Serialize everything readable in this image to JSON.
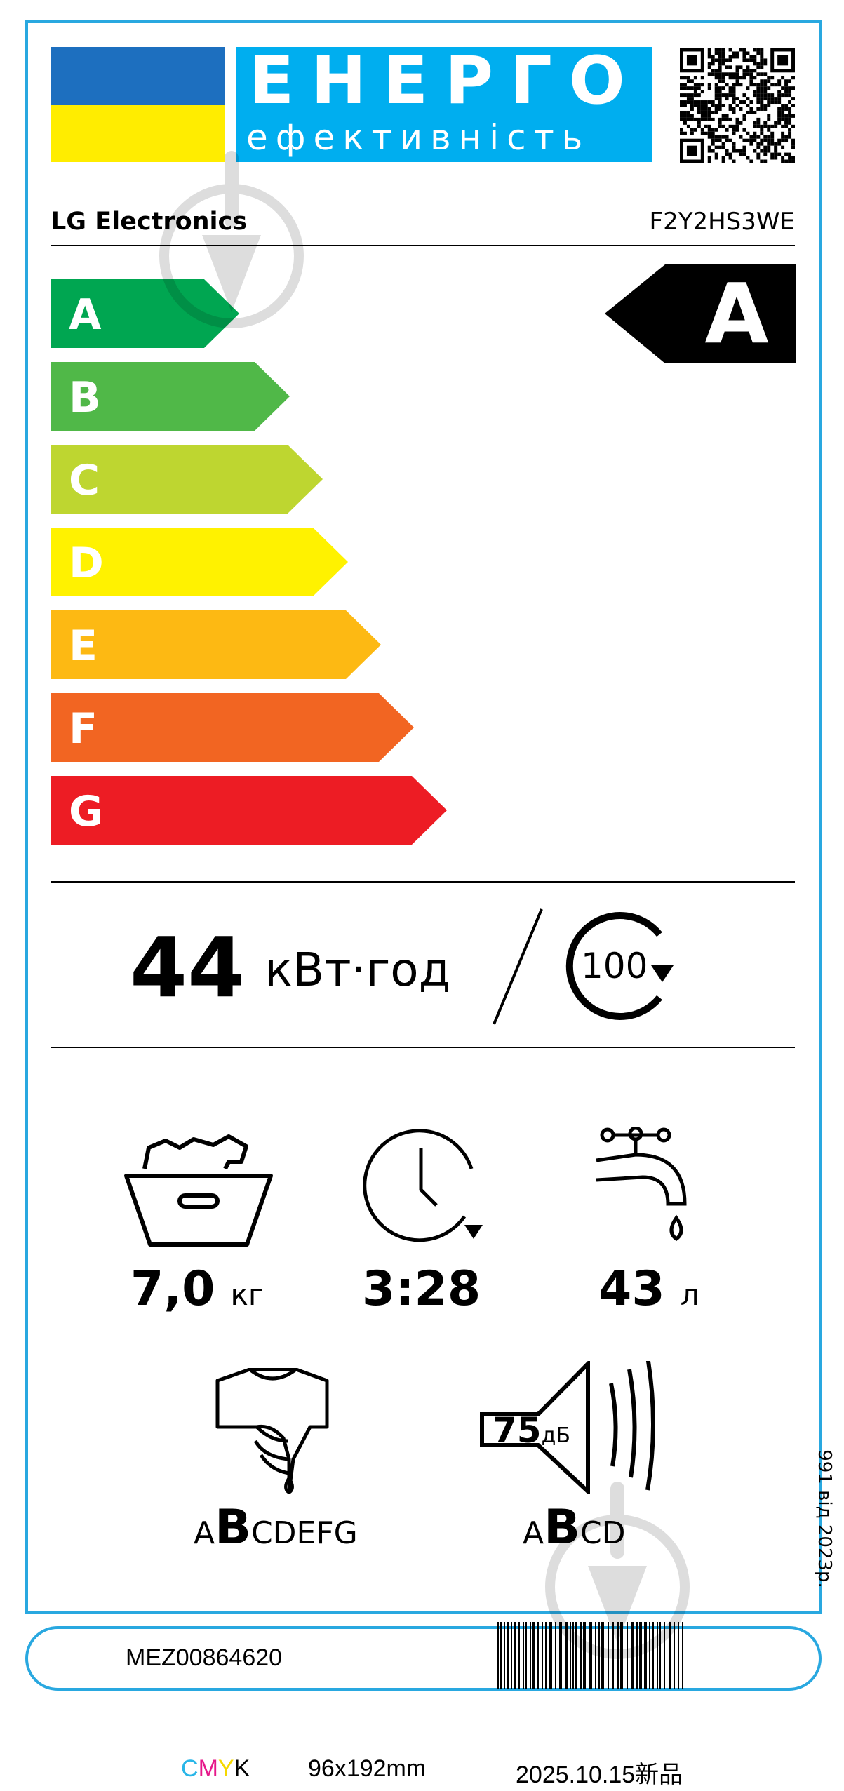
{
  "header": {
    "title_top": "ЕНЕРГО",
    "title_bottom": "ефективність",
    "flag_colors": [
      "#1d6fbf",
      "#ffed00"
    ],
    "qr_icon": "qr-code-icon"
  },
  "supplier": "LG Electronics",
  "model": "F2Y2HS3WE",
  "energy_classes": [
    {
      "label": "A",
      "color": "#00a651"
    },
    {
      "label": "B",
      "color": "#50b848"
    },
    {
      "label": "C",
      "color": "#bed630"
    },
    {
      "label": "D",
      "color": "#fff200"
    },
    {
      "label": "E",
      "color": "#fdb913"
    },
    {
      "label": "F",
      "color": "#f26522"
    },
    {
      "label": "G",
      "color": "#ed1c24"
    }
  ],
  "rated_class": "A",
  "energy": {
    "value": "44",
    "unit": "кВт·год",
    "cycles": "100"
  },
  "metrics": {
    "capacity": {
      "value": "7,0",
      "unit": "кг"
    },
    "duration": {
      "value": "3:28"
    },
    "water": {
      "value": "43",
      "unit": "л"
    }
  },
  "spin_class": {
    "before": "A",
    "selected": "B",
    "after": "CDEFG"
  },
  "noise": {
    "value": "75",
    "unit": "дБ",
    "class_before": "A",
    "class_selected": "B",
    "class_after": "CD"
  },
  "regulation": "991 від 2023р.",
  "part_number": "MEZ00864620",
  "footer": {
    "c": "C",
    "m": "M",
    "y": "Y",
    "k": "K",
    "size": "96x192mm",
    "date": "2025.10.15新品"
  }
}
